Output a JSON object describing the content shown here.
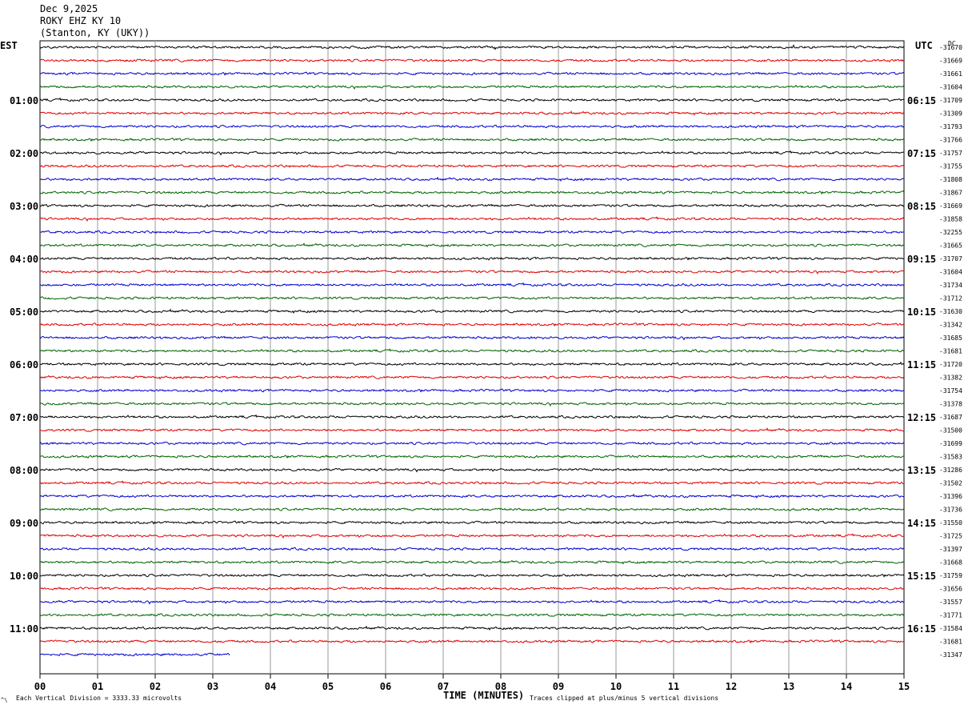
{
  "header": {
    "date": "Dec 9,2025",
    "station": "ROKY EHZ KY 10",
    "location": "(Stanton, KY (UKY))"
  },
  "labels": {
    "left_zone": "EST",
    "right_zone": "UTC",
    "dc_header": "DC"
  },
  "footer": {
    "left_note": "Each Vertical Division = 3333.33 microvolts",
    "right_note": "Traces clipped at plus/minus 5 vertical divisions",
    "corner_mark": "^\\"
  },
  "colors": {
    "trace_cycle": [
      "#000000",
      "#e00000",
      "#0000d0",
      "#006400"
    ],
    "grid": "#999999"
  },
  "chart_data": {
    "type": "line",
    "title": "ROKY EHZ KY 10",
    "xlabel": "TIME (MINUTES)",
    "ylabel": "",
    "x_range": [
      0,
      15
    ],
    "x_ticks": [
      "00",
      "01",
      "02",
      "03",
      "04",
      "05",
      "06",
      "07",
      "08",
      "09",
      "10",
      "11",
      "12",
      "13",
      "14",
      "15"
    ],
    "grid": true,
    "traces_per_hour": 4,
    "trace_minutes": 15,
    "last_trace_end_minute": 3.3,
    "left_hour_labels": [
      {
        "row": 4,
        "label": "01:00"
      },
      {
        "row": 8,
        "label": "02:00"
      },
      {
        "row": 12,
        "label": "03:00"
      },
      {
        "row": 16,
        "label": "04:00"
      },
      {
        "row": 20,
        "label": "05:00"
      },
      {
        "row": 24,
        "label": "06:00"
      },
      {
        "row": 28,
        "label": "07:00"
      },
      {
        "row": 32,
        "label": "08:00"
      },
      {
        "row": 36,
        "label": "09:00"
      },
      {
        "row": 40,
        "label": "10:00"
      },
      {
        "row": 44,
        "label": "11:00"
      }
    ],
    "right_hour_labels": [
      {
        "row": 4,
        "label": "06:15"
      },
      {
        "row": 8,
        "label": "07:15"
      },
      {
        "row": 12,
        "label": "08:15"
      },
      {
        "row": 16,
        "label": "09:15"
      },
      {
        "row": 20,
        "label": "10:15"
      },
      {
        "row": 24,
        "label": "11:15"
      },
      {
        "row": 28,
        "label": "12:15"
      },
      {
        "row": 32,
        "label": "13:15"
      },
      {
        "row": 36,
        "label": "14:15"
      },
      {
        "row": 40,
        "label": "15:15"
      },
      {
        "row": 44,
        "label": "16:15"
      }
    ],
    "dc_offsets": [
      "-31670",
      "-31669",
      "-31661",
      "-31604",
      "-31709",
      "-31309",
      "-31793",
      "-31766",
      "-31757",
      "-31755",
      "-31808",
      "-31867",
      "-31669",
      "-31858",
      "-32255",
      "-31665",
      "-31707",
      "-31604",
      "-31734",
      "-31712",
      "-31630",
      "-31342",
      "-31685",
      "-31681",
      "-31720",
      "-31382",
      "-31754",
      "-31378",
      "-31687",
      "-31500",
      "-31699",
      "-31583",
      "-31286",
      "-31502",
      "-31396",
      "-31736",
      "-31550",
      "-31725",
      "-31397",
      "-31668",
      "-31759",
      "-31656",
      "-31557",
      "-31771",
      "-31584",
      "-31681",
      "-31347"
    ]
  }
}
